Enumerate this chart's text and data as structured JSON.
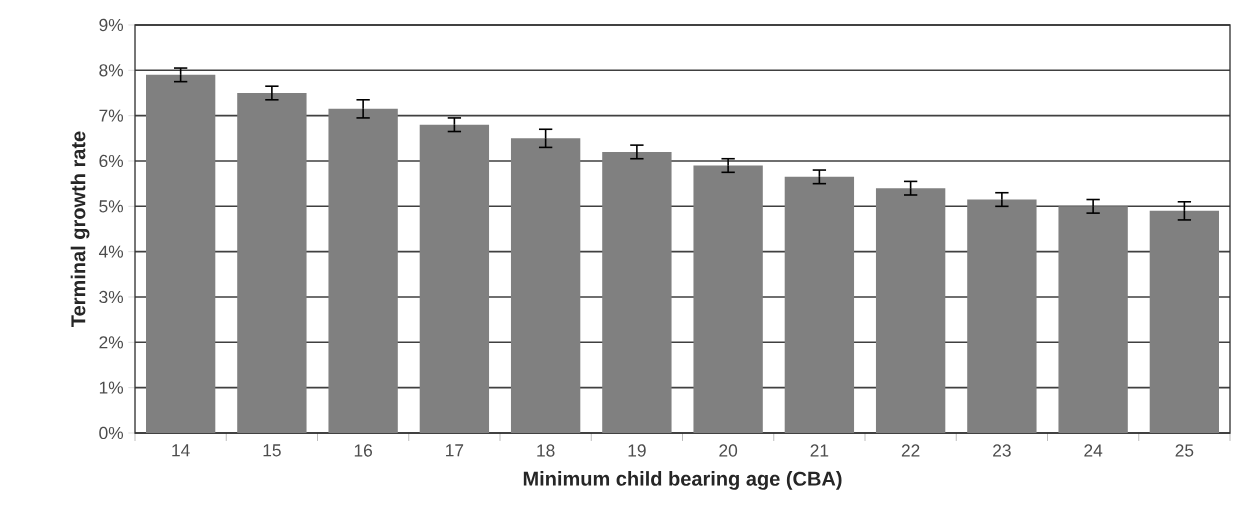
{
  "chart_data": {
    "type": "bar",
    "xlabel": "Minimum child bearing age (CBA)",
    "ylabel": "Terminal growth rate",
    "categories": [
      "14",
      "15",
      "16",
      "17",
      "18",
      "19",
      "20",
      "21",
      "22",
      "23",
      "24",
      "25"
    ],
    "values": [
      7.9,
      7.5,
      7.15,
      6.8,
      6.5,
      6.2,
      5.9,
      5.65,
      5.4,
      5.15,
      5.0,
      4.9
    ],
    "errors": [
      0.15,
      0.15,
      0.2,
      0.15,
      0.2,
      0.15,
      0.15,
      0.15,
      0.15,
      0.15,
      0.15,
      0.2
    ],
    "color": "#808080",
    "ylim": [
      0,
      9
    ],
    "yticks": [
      {
        "value": 0,
        "label": "0%"
      },
      {
        "value": 1,
        "label": "1%"
      },
      {
        "value": 2,
        "label": "2%"
      },
      {
        "value": 3,
        "label": "3%"
      },
      {
        "value": 4,
        "label": "4%"
      },
      {
        "value": 5,
        "label": "5%"
      },
      {
        "value": 6,
        "label": "6%"
      },
      {
        "value": 7,
        "label": "7%"
      },
      {
        "value": 8,
        "label": "8%"
      },
      {
        "value": 9,
        "label": "9%"
      }
    ],
    "grid": "y"
  }
}
